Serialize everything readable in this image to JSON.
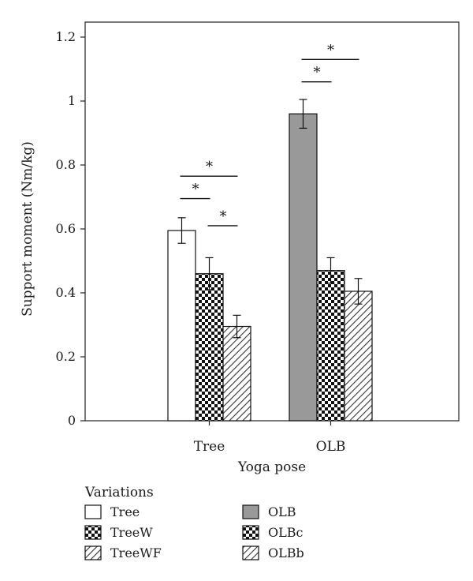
{
  "chart_data": {
    "type": "bar",
    "xlabel": "Yoga pose",
    "ylabel": "Support moment (Nm/kg)",
    "ylim": [
      0,
      1.2
    ],
    "yticks": [
      0,
      0.2,
      0.4,
      0.6,
      0.8,
      1,
      1.2
    ],
    "ytick_labels": [
      "0",
      "0.2",
      "0.4",
      "0.6",
      "0.8",
      "1",
      "1.2"
    ],
    "grid": false,
    "groups": [
      {
        "category": "Tree",
        "bars": [
          {
            "name": "Tree",
            "value": 0.595,
            "error": 0.04,
            "pattern": "white"
          },
          {
            "name": "TreeW",
            "value": 0.46,
            "error": 0.05,
            "pattern": "checker"
          },
          {
            "name": "TreeWF",
            "value": 0.295,
            "error": 0.035,
            "pattern": "hatch"
          }
        ]
      },
      {
        "category": "OLB",
        "bars": [
          {
            "name": "OLB",
            "value": 0.96,
            "error": 0.045,
            "pattern": "gray"
          },
          {
            "name": "OLBc",
            "value": 0.47,
            "error": 0.04,
            "pattern": "checker"
          },
          {
            "name": "OLBb",
            "value": 0.405,
            "error": 0.04,
            "pattern": "hatch"
          }
        ]
      }
    ],
    "significance": [
      {
        "group": 0,
        "from": 0,
        "to": 1,
        "y": 0.695,
        "label": "*"
      },
      {
        "group": 0,
        "from": 0,
        "to": 2,
        "y": 0.765,
        "label": "*"
      },
      {
        "group": 0,
        "from": 1,
        "to": 2,
        "y": 0.61,
        "label": "*"
      },
      {
        "group": 1,
        "from": 0,
        "to": 1,
        "y": 1.06,
        "label": "*"
      },
      {
        "group": 1,
        "from": 0,
        "to": 2,
        "y": 1.13,
        "label": "*"
      }
    ],
    "legend": {
      "title": "Variations",
      "placement": "bottom",
      "entries": [
        {
          "label": "Tree",
          "pattern": "white"
        },
        {
          "label": "TreeW",
          "pattern": "checker"
        },
        {
          "label": "TreeWF",
          "pattern": "hatch"
        },
        {
          "label": "OLB",
          "pattern": "gray"
        },
        {
          "label": "OLBc",
          "pattern": "checker"
        },
        {
          "label": "OLBb",
          "pattern": "hatch"
        }
      ]
    }
  }
}
